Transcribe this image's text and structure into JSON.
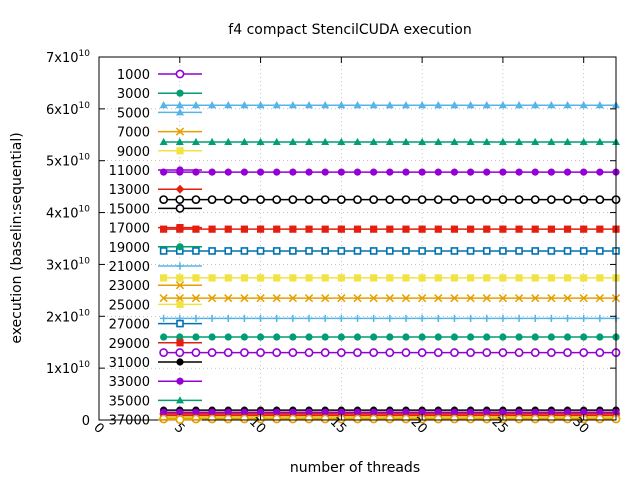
{
  "chart_data": {
    "type": "line",
    "title": "f4 compact StencilCUDA execution",
    "xlabel": "number of threads",
    "ylabel": "execution (baselin:sequential)",
    "xlim": [
      0,
      32
    ],
    "ylim": [
      0,
      70000000000
    ],
    "x_ticks": [
      "0",
      "5",
      "10",
      "15",
      "20",
      "25",
      "30"
    ],
    "y_ticks": [
      {
        "value": 0,
        "mantissa": "0",
        "exp": ""
      },
      {
        "value": 10000000000,
        "mantissa": "1x10",
        "exp": "10"
      },
      {
        "value": 20000000000,
        "mantissa": "2x10",
        "exp": "10"
      },
      {
        "value": 30000000000,
        "mantissa": "3x10",
        "exp": "10"
      },
      {
        "value": 40000000000,
        "mantissa": "4x10",
        "exp": "10"
      },
      {
        "value": 50000000000,
        "mantissa": "5x10",
        "exp": "10"
      },
      {
        "value": 60000000000,
        "mantissa": "6x10",
        "exp": "10"
      },
      {
        "value": 70000000000,
        "mantissa": "7x10",
        "exp": "10"
      }
    ],
    "grid": true,
    "legend_position": "top-left",
    "x": [
      4,
      5,
      6,
      7,
      8,
      9,
      10,
      11,
      12,
      13,
      14,
      15,
      16,
      17,
      18,
      19,
      20,
      21,
      22,
      23,
      24,
      25,
      26,
      27,
      28,
      29,
      30,
      31,
      32
    ],
    "series": [
      {
        "name": "1000",
        "color": "#9400d3",
        "marker": "circle-open",
        "y": 13000000000
      },
      {
        "name": "3000",
        "color": "#009e73",
        "marker": "circle-filled",
        "y": 16000000000
      },
      {
        "name": "5000",
        "color": "#56b4e9",
        "marker": "triangle-filled",
        "y": 60700000000
      },
      {
        "name": "7000",
        "color": "#e69f00",
        "marker": "x",
        "y": 23500000000
      },
      {
        "name": "9000",
        "color": "#f0e442",
        "marker": "square-filled",
        "y": 27400000000
      },
      {
        "name": "11000",
        "color": "#9400d3",
        "marker": "circle-filled",
        "y": 47800000000
      },
      {
        "name": "13000",
        "color": "#e51e10",
        "marker": "diamond-filled",
        "y": 1200000000
      },
      {
        "name": "15000",
        "color": "#000000",
        "marker": "circle-open",
        "y": 42500000000
      },
      {
        "name": "17000",
        "color": "#e51e10",
        "marker": "square-filled",
        "y": 36800000000
      },
      {
        "name": "19000",
        "color": "#009e73",
        "marker": "circle-filled",
        "y": 800000000
      },
      {
        "name": "21000",
        "color": "#56b4e9",
        "marker": "plus",
        "y": 19600000000
      },
      {
        "name": "23000",
        "color": "#e69f00",
        "marker": "x",
        "y": 400000000
      },
      {
        "name": "25000",
        "color": "#f0e442",
        "marker": "square-filled",
        "y": 600000000
      },
      {
        "name": "27000",
        "color": "#0072b2",
        "marker": "square-open",
        "y": 32600000000
      },
      {
        "name": "29000",
        "color": "#e51e10",
        "marker": "square-filled",
        "y": 900000000
      },
      {
        "name": "31000",
        "color": "#000000",
        "marker": "circle-filled",
        "y": 1900000000
      },
      {
        "name": "33000",
        "color": "#9400d3",
        "marker": "circle-filled",
        "y": 1500000000
      },
      {
        "name": "35000",
        "color": "#009e73",
        "marker": "triangle-filled",
        "y": 53600000000
      },
      {
        "name": "37000",
        "color": "#e69f00",
        "marker": "circle-open",
        "y": 200000000
      }
    ]
  }
}
